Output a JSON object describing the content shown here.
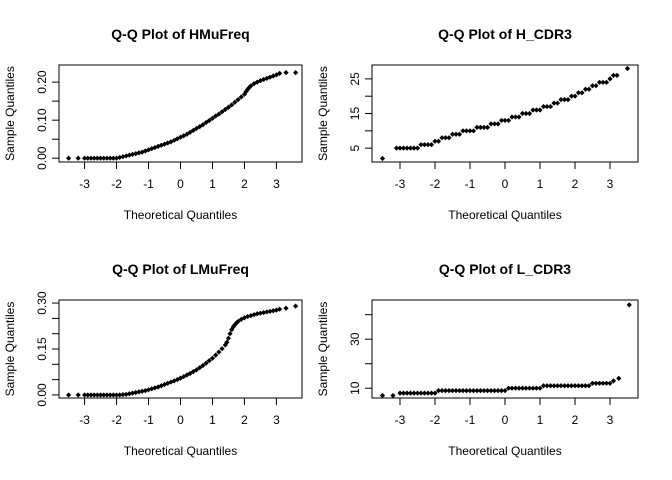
{
  "chart_data": [
    {
      "type": "scatter",
      "title": "Q-Q Plot of HMuFreq",
      "xlabel": "Theoretical Quantiles",
      "ylabel": "Sample Quantiles",
      "xlim": [
        -3.8,
        3.8
      ],
      "ylim": [
        -0.01,
        0.245
      ],
      "xticks": [
        -3,
        -2,
        -1,
        0,
        1,
        2,
        3
      ],
      "yticks": [
        0.0,
        0.05,
        0.1,
        0.15,
        0.2
      ],
      "ytick_labels": [
        "0.00",
        "",
        "0.10",
        "",
        "0.20"
      ],
      "grid": false,
      "series": [
        {
          "x": [
            -3.5,
            -3.2,
            -3.0,
            -2.9,
            -2.8,
            -2.7,
            -2.6,
            -2.5,
            -2.4,
            -2.3,
            -2.2,
            -2.1,
            -2.0,
            -1.9,
            -1.8,
            -1.7,
            -1.6,
            -1.5,
            -1.4,
            -1.3,
            -1.2,
            -1.1,
            -1.0,
            -0.9,
            -0.8,
            -0.7,
            -0.6,
            -0.5,
            -0.4,
            -0.3,
            -0.2,
            -0.1,
            0.0,
            0.1,
            0.2,
            0.3,
            0.4,
            0.5,
            0.6,
            0.7,
            0.8,
            0.9,
            1.0,
            1.1,
            1.2,
            1.3,
            1.4,
            1.5,
            1.6,
            1.7,
            1.8,
            1.9,
            2.0,
            2.05,
            2.1,
            2.15,
            2.2,
            2.3,
            2.4,
            2.5,
            2.6,
            2.7,
            2.8,
            2.9,
            3.0,
            3.1,
            3.3,
            3.6
          ],
          "y": [
            0.0,
            0.0,
            0.0,
            0.0,
            0.0,
            0.0,
            0.0,
            0.0,
            0.0,
            0.0,
            0.0,
            0.0,
            0.0,
            0.002,
            0.004,
            0.006,
            0.008,
            0.01,
            0.012,
            0.014,
            0.016,
            0.019,
            0.022,
            0.025,
            0.028,
            0.031,
            0.034,
            0.037,
            0.04,
            0.043,
            0.047,
            0.051,
            0.055,
            0.059,
            0.063,
            0.068,
            0.073,
            0.078,
            0.083,
            0.088,
            0.094,
            0.099,
            0.105,
            0.111,
            0.116,
            0.122,
            0.128,
            0.134,
            0.14,
            0.147,
            0.154,
            0.161,
            0.168,
            0.175,
            0.181,
            0.186,
            0.19,
            0.196,
            0.2,
            0.204,
            0.207,
            0.21,
            0.213,
            0.216,
            0.219,
            0.223,
            0.225,
            0.225
          ]
        }
      ]
    },
    {
      "type": "scatter",
      "title": "Q-Q Plot of H_CDR3",
      "xlabel": "Theoretical Quantiles",
      "ylabel": "Sample Quantiles",
      "xlim": [
        -3.8,
        3.8
      ],
      "ylim": [
        1.0,
        29.0
      ],
      "xticks": [
        -3,
        -2,
        -1,
        0,
        1,
        2,
        3
      ],
      "yticks": [
        5,
        10,
        15,
        20,
        25
      ],
      "ytick_labels": [
        "5",
        "",
        "15",
        "",
        "25"
      ],
      "grid": false,
      "series": [
        {
          "x": [
            -3.5,
            -3.1,
            -3.0,
            -2.9,
            -2.8,
            -2.7,
            -2.6,
            -2.5,
            -2.4,
            -2.3,
            -2.2,
            -2.1,
            -2.0,
            -1.9,
            -1.8,
            -1.7,
            -1.6,
            -1.5,
            -1.4,
            -1.3,
            -1.2,
            -1.1,
            -1.0,
            -0.9,
            -0.8,
            -0.7,
            -0.6,
            -0.5,
            -0.4,
            -0.3,
            -0.2,
            -0.1,
            0.0,
            0.1,
            0.2,
            0.3,
            0.4,
            0.5,
            0.6,
            0.7,
            0.8,
            0.9,
            1.0,
            1.1,
            1.2,
            1.3,
            1.4,
            1.5,
            1.6,
            1.7,
            1.8,
            1.9,
            2.0,
            2.1,
            2.2,
            2.3,
            2.4,
            2.5,
            2.6,
            2.7,
            2.8,
            2.9,
            3.0,
            3.1,
            3.2,
            3.5
          ],
          "y": [
            2,
            5,
            5,
            5,
            5,
            5,
            5,
            5,
            6,
            6,
            6,
            6,
            7,
            7,
            8,
            8,
            8,
            9,
            9,
            9,
            10,
            10,
            10,
            10,
            11,
            11,
            11,
            11,
            12,
            12,
            12,
            13,
            13,
            13,
            14,
            14,
            14,
            15,
            15,
            15,
            16,
            16,
            16,
            17,
            17,
            17,
            18,
            18,
            19,
            19,
            19,
            20,
            20,
            21,
            21,
            22,
            22,
            23,
            23,
            24,
            24,
            24,
            25,
            26,
            26,
            28
          ]
        }
      ]
    },
    {
      "type": "scatter",
      "title": "Q-Q Plot of LMuFreq",
      "xlabel": "Theoretical Quantiles",
      "ylabel": "Sample Quantiles",
      "xlim": [
        -3.8,
        3.8
      ],
      "ylim": [
        -0.01,
        0.31
      ],
      "xticks": [
        -3,
        -2,
        -1,
        0,
        1,
        2,
        3
      ],
      "yticks": [
        0.0,
        0.05,
        0.1,
        0.15,
        0.2,
        0.25,
        0.3
      ],
      "ytick_labels": [
        "0.00",
        "",
        "",
        "0.15",
        "",
        "",
        "0.30"
      ],
      "grid": false,
      "series": [
        {
          "x": [
            -3.5,
            -3.2,
            -3.0,
            -2.9,
            -2.8,
            -2.7,
            -2.6,
            -2.5,
            -2.4,
            -2.3,
            -2.2,
            -2.1,
            -2.0,
            -1.9,
            -1.8,
            -1.7,
            -1.6,
            -1.5,
            -1.4,
            -1.3,
            -1.2,
            -1.1,
            -1.0,
            -0.9,
            -0.8,
            -0.7,
            -0.6,
            -0.5,
            -0.4,
            -0.3,
            -0.2,
            -0.1,
            0.0,
            0.1,
            0.2,
            0.3,
            0.4,
            0.5,
            0.6,
            0.7,
            0.8,
            0.9,
            1.0,
            1.1,
            1.2,
            1.3,
            1.4,
            1.45,
            1.5,
            1.55,
            1.6,
            1.65,
            1.7,
            1.75,
            1.8,
            1.9,
            2.0,
            2.1,
            2.2,
            2.3,
            2.4,
            2.5,
            2.6,
            2.7,
            2.8,
            2.9,
            3.0,
            3.1,
            3.3,
            3.6
          ],
          "y": [
            0.0,
            0.0,
            0.0,
            0.0,
            0.0,
            0.0,
            0.0,
            0.0,
            0.0,
            0.0,
            0.0,
            0.0,
            0.0,
            0.0,
            0.001,
            0.002,
            0.004,
            0.006,
            0.008,
            0.01,
            0.012,
            0.014,
            0.017,
            0.02,
            0.023,
            0.026,
            0.03,
            0.034,
            0.038,
            0.042,
            0.046,
            0.05,
            0.055,
            0.06,
            0.065,
            0.07,
            0.076,
            0.082,
            0.089,
            0.096,
            0.104,
            0.112,
            0.12,
            0.13,
            0.14,
            0.151,
            0.163,
            0.172,
            0.185,
            0.2,
            0.213,
            0.222,
            0.229,
            0.235,
            0.24,
            0.247,
            0.252,
            0.256,
            0.259,
            0.262,
            0.265,
            0.267,
            0.269,
            0.271,
            0.273,
            0.275,
            0.277,
            0.28,
            0.283,
            0.29
          ]
        }
      ]
    },
    {
      "type": "scatter",
      "title": "Q-Q Plot of L_CDR3",
      "xlabel": "Theoretical Quantiles",
      "ylabel": "Sample Quantiles",
      "xlim": [
        -3.8,
        3.8
      ],
      "ylim": [
        6.0,
        46.0
      ],
      "xticks": [
        -3,
        -2,
        -1,
        0,
        1,
        2,
        3
      ],
      "yticks": [
        10,
        20,
        30,
        40
      ],
      "ytick_labels": [
        "10",
        "",
        "30",
        ""
      ],
      "grid": false,
      "series": [
        {
          "x": [
            -3.5,
            -3.2,
            -3.0,
            -2.9,
            -2.8,
            -2.7,
            -2.6,
            -2.5,
            -2.4,
            -2.3,
            -2.2,
            -2.1,
            -2.0,
            -1.9,
            -1.8,
            -1.7,
            -1.6,
            -1.5,
            -1.4,
            -1.3,
            -1.2,
            -1.1,
            -1.0,
            -0.9,
            -0.8,
            -0.7,
            -0.6,
            -0.5,
            -0.4,
            -0.3,
            -0.2,
            -0.1,
            0.0,
            0.1,
            0.2,
            0.3,
            0.4,
            0.5,
            0.6,
            0.7,
            0.8,
            0.9,
            1.0,
            1.1,
            1.2,
            1.3,
            1.4,
            1.5,
            1.6,
            1.7,
            1.8,
            1.9,
            2.0,
            2.1,
            2.2,
            2.3,
            2.4,
            2.5,
            2.6,
            2.7,
            2.8,
            2.9,
            3.0,
            3.1,
            3.25,
            3.55
          ],
          "y": [
            7,
            7,
            8,
            8,
            8,
            8,
            8,
            8,
            8,
            8,
            8,
            8,
            8,
            9,
            9,
            9,
            9,
            9,
            9,
            9,
            9,
            9,
            9,
            9,
            9,
            9,
            9,
            9,
            9,
            9,
            9,
            9,
            9,
            10,
            10,
            10,
            10,
            10,
            10,
            10,
            10,
            10,
            10,
            11,
            11,
            11,
            11,
            11,
            11,
            11,
            11,
            11,
            11,
            11,
            11,
            11,
            11,
            12,
            12,
            12,
            12,
            12,
            12,
            13,
            14,
            44
          ]
        }
      ]
    }
  ]
}
